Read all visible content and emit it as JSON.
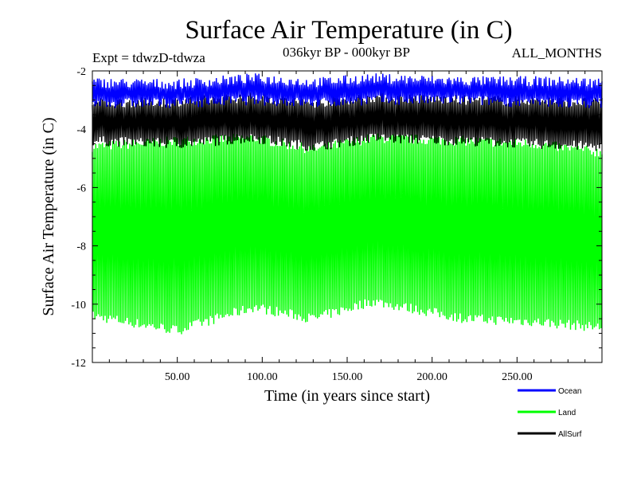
{
  "chart_data": {
    "type": "line",
    "title": "Surface Air Temperature (in C)",
    "subtitle": "036kyr BP - 000kyr BP",
    "experiment_label": "Expt = tdwzD-tdwza",
    "months_label": "ALL_MONTHS",
    "xlabel": "Time (in years since start)",
    "ylabel": "Surface Air Temperature (in C)",
    "xlim": [
      0,
      300
    ],
    "ylim": [
      -12,
      -2
    ],
    "x_ticks": [
      50,
      100,
      150,
      200,
      250
    ],
    "x_tick_labels": [
      "50.00",
      "100.00",
      "150.00",
      "200.00",
      "250.00"
    ],
    "y_ticks": [
      -12,
      -10,
      -8,
      -6,
      -4,
      -2
    ],
    "y_tick_labels": [
      "-12",
      "-10",
      "-8",
      "-6",
      "-4",
      "-2"
    ],
    "grid": false,
    "legend_position": "bottom-right",
    "series": [
      {
        "name": "Ocean",
        "color": "#0000ff",
        "band_top": [
          [
            0,
            -2.4
          ],
          [
            50,
            -2.45
          ],
          [
            95,
            -2.25
          ],
          [
            130,
            -2.4
          ],
          [
            165,
            -2.25
          ],
          [
            220,
            -2.35
          ],
          [
            260,
            -2.35
          ],
          [
            300,
            -2.4
          ]
        ],
        "band_bottom": [
          [
            0,
            -3.1
          ],
          [
            50,
            -3.1
          ],
          [
            95,
            -3.0
          ],
          [
            130,
            -3.1
          ],
          [
            165,
            -3.0
          ],
          [
            220,
            -3.0
          ],
          [
            260,
            -3.1
          ],
          [
            300,
            -3.1
          ]
        ]
      },
      {
        "name": "Land",
        "color": "#00ff00",
        "band_top": [
          [
            0,
            -4.6
          ],
          [
            50,
            -4.4
          ],
          [
            95,
            -4.3
          ],
          [
            130,
            -4.7
          ],
          [
            165,
            -4.3
          ],
          [
            220,
            -4.4
          ],
          [
            260,
            -4.5
          ],
          [
            300,
            -4.8
          ]
        ],
        "band_bottom": [
          [
            0,
            -10.4
          ],
          [
            50,
            -10.9
          ],
          [
            95,
            -10.1
          ],
          [
            130,
            -10.5
          ],
          [
            165,
            -9.9
          ],
          [
            220,
            -10.5
          ],
          [
            260,
            -10.6
          ],
          [
            300,
            -10.8
          ]
        ]
      },
      {
        "name": "AllSurf",
        "color": "#000000",
        "band_top": [
          [
            0,
            -3.1
          ],
          [
            50,
            -3.05
          ],
          [
            95,
            -2.9
          ],
          [
            130,
            -3.1
          ],
          [
            165,
            -2.9
          ],
          [
            220,
            -3.0
          ],
          [
            260,
            -3.0
          ],
          [
            300,
            -3.1
          ]
        ],
        "band_bottom": [
          [
            0,
            -4.4
          ],
          [
            50,
            -4.5
          ],
          [
            95,
            -4.3
          ],
          [
            130,
            -4.6
          ],
          [
            165,
            -4.3
          ],
          [
            220,
            -4.4
          ],
          [
            260,
            -4.5
          ],
          [
            300,
            -4.6
          ]
        ]
      }
    ]
  }
}
